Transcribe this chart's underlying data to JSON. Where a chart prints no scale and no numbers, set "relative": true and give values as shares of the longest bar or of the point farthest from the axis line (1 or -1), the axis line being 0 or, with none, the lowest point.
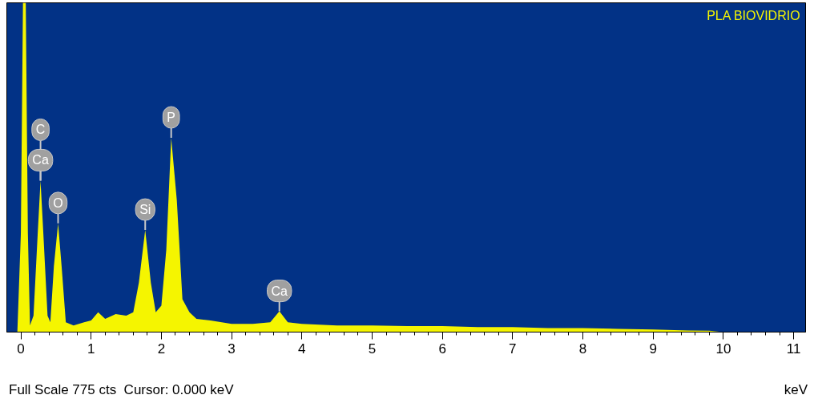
{
  "chart_data": {
    "type": "area",
    "title": "PLA BIOVIDRIO",
    "xlabel": "keV",
    "relative": true,
    "xlim": [
      -0.2,
      11.17
    ],
    "xticks": [
      0,
      1,
      2,
      3,
      4,
      5,
      6,
      7,
      8,
      9,
      10,
      11
    ],
    "grid": false,
    "series": [
      {
        "color": "#f5f500",
        "x": [
          -0.2,
          -0.05,
          0.0,
          0.03,
          0.07,
          0.1,
          0.13,
          0.18,
          0.24,
          0.28,
          0.32,
          0.38,
          0.42,
          0.47,
          0.53,
          0.58,
          0.64,
          0.75,
          0.9,
          1.0,
          1.1,
          1.2,
          1.35,
          1.5,
          1.6,
          1.68,
          1.77,
          1.85,
          1.92,
          2.0,
          2.07,
          2.14,
          2.22,
          2.3,
          2.4,
          2.5,
          2.7,
          3.0,
          3.3,
          3.55,
          3.68,
          3.8,
          4.0,
          4.5,
          5.0,
          5.5,
          6.0,
          6.5,
          7.0,
          7.5,
          8.0,
          8.5,
          9.0,
          9.5,
          9.8,
          10.0,
          11.17
        ],
        "values": [
          0,
          0,
          0.3,
          1,
          1,
          0.3,
          0.02,
          0.05,
          0.3,
          0.46,
          0.3,
          0.05,
          0.03,
          0.2,
          0.33,
          0.2,
          0.03,
          0.02,
          0.03,
          0.035,
          0.06,
          0.04,
          0.055,
          0.05,
          0.06,
          0.15,
          0.31,
          0.15,
          0.06,
          0.08,
          0.25,
          0.59,
          0.4,
          0.1,
          0.06,
          0.04,
          0.035,
          0.025,
          0.025,
          0.03,
          0.063,
          0.03,
          0.025,
          0.02,
          0.02,
          0.018,
          0.018,
          0.015,
          0.015,
          0.012,
          0.012,
          0.01,
          0.008,
          0.005,
          0.004,
          0,
          0
        ]
      }
    ],
    "annotations": [
      {
        "text": "Ca",
        "x": 0.28,
        "y": 0.46
      },
      {
        "text": "C",
        "x": 0.28,
        "y": 0.46
      },
      {
        "text": "O",
        "x": 0.53,
        "y": 0.33
      },
      {
        "text": "Si",
        "x": 1.77,
        "y": 0.31
      },
      {
        "text": "P",
        "x": 2.14,
        "y": 0.59
      },
      {
        "text": "Ca",
        "x": 3.68,
        "y": 0.063
      },
      "Full Scale 775 cts  Cursor: 0.000 keV"
    ]
  }
}
